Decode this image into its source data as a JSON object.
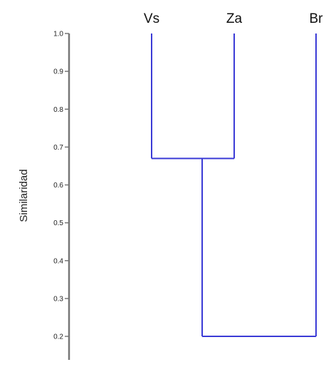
{
  "chart_data": {
    "type": "dendrogram",
    "ylabel": "Similaridad",
    "ylim": [
      0.15,
      1.0
    ],
    "y_ticks": [
      "0.2",
      "0.3",
      "0.4",
      "0.5",
      "0.6",
      "0.7",
      "0.8",
      "0.9",
      "1.0"
    ],
    "leaves": [
      "Vs",
      "Za",
      "Br"
    ],
    "merges": [
      {
        "members": [
          "Vs",
          "Za"
        ],
        "similarity": 0.67
      },
      {
        "members": [
          "Vs+Za",
          "Br"
        ],
        "similarity": 0.2
      }
    ],
    "colors": {
      "branch": "#3b3bd6",
      "axis": "#777777"
    }
  }
}
